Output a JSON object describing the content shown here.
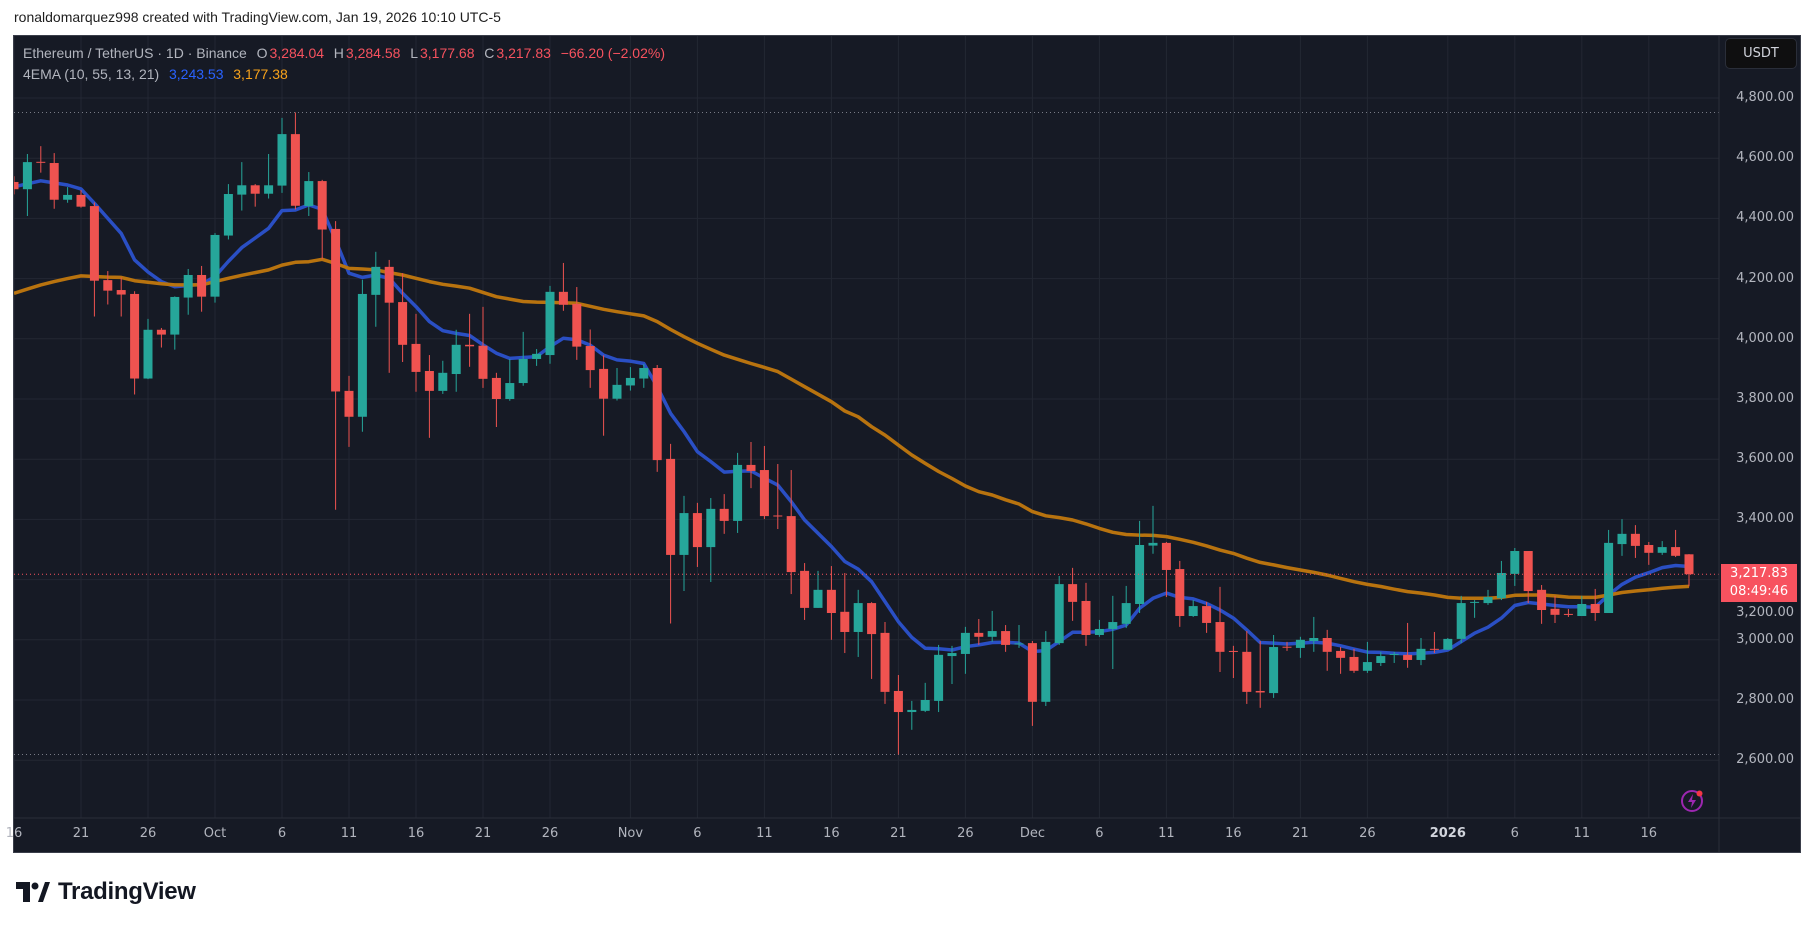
{
  "author_line": "ronaldomarquez998 created with TradingView.com, Jan 19, 2026 10:10 UTC-5",
  "legend": {
    "symbol": "Ethereum / TetherUS · 1D · Binance",
    "open_label": "O",
    "open": "3,284.04",
    "high_label": "H",
    "high": "3,284.58",
    "low_label": "L",
    "low": "3,177.68",
    "close_label": "C",
    "close": "3,217.83",
    "change": "−66.20 (−2.02%)",
    "indicator": "4EMA (10, 55, 13, 21)",
    "ema_fast_value": "3,243.53",
    "ema_slow_value": "3,177.38"
  },
  "currency_button": "USDT",
  "last_price": {
    "price": "3,217.83",
    "countdown": "08:49:46"
  },
  "brand": "TradingView",
  "alert_icon": "lightning-bolt-icon",
  "colors": {
    "background": "#161a25",
    "grid": "#232733",
    "up": "#26a69a",
    "down": "#ef5350",
    "ema_fast": "#2a4fc4",
    "ema_slow": "#b8730f",
    "last_price": "#f7525f"
  },
  "chart_data": {
    "type": "candlestick",
    "title": "Ethereum / TetherUS · 1D · Binance",
    "xlabel": "",
    "ylabel": "USDT",
    "ylim": [
      2460,
      4930
    ],
    "grid": true,
    "price_axis": {
      "ticks": [
        "4,800.00",
        "4,600.00",
        "4,400.00",
        "4,200.00",
        "4,000.00",
        "3,800.00",
        "3,600.00",
        "3,400.00",
        "3,200.00",
        "3,000.00",
        "2,800.00",
        "2,600.00"
      ]
    },
    "time_axis": {
      "ticks": [
        {
          "label": "16",
          "date": "2025-09-16"
        },
        {
          "label": "21",
          "date": "2025-09-21"
        },
        {
          "label": "26",
          "date": "2025-09-26"
        },
        {
          "label": "Oct",
          "date": "2025-10-01"
        },
        {
          "label": "6",
          "date": "2025-10-06"
        },
        {
          "label": "11",
          "date": "2025-10-11"
        },
        {
          "label": "16",
          "date": "2025-10-16"
        },
        {
          "label": "21",
          "date": "2025-10-21"
        },
        {
          "label": "26",
          "date": "2025-10-26"
        },
        {
          "label": "Nov",
          "date": "2025-11-01"
        },
        {
          "label": "6",
          "date": "2025-11-06"
        },
        {
          "label": "11",
          "date": "2025-11-11"
        },
        {
          "label": "16",
          "date": "2025-11-16"
        },
        {
          "label": "21",
          "date": "2025-11-21"
        },
        {
          "label": "26",
          "date": "2025-11-26"
        },
        {
          "label": "Dec",
          "date": "2025-12-01"
        },
        {
          "label": "6",
          "date": "2025-12-06"
        },
        {
          "label": "11",
          "date": "2025-12-11"
        },
        {
          "label": "16",
          "date": "2025-12-16"
        },
        {
          "label": "21",
          "date": "2025-12-21"
        },
        {
          "label": "26",
          "date": "2025-12-26"
        },
        {
          "label": "2026",
          "date": "2026-01-01",
          "bold": true
        },
        {
          "label": "6",
          "date": "2026-01-06"
        },
        {
          "label": "11",
          "date": "2026-01-11"
        },
        {
          "label": "16",
          "date": "2026-01-16"
        }
      ]
    },
    "candles_columns": [
      "date",
      "open",
      "high",
      "low",
      "close"
    ],
    "candles": [
      [
        "2025-09-16",
        4521,
        4540,
        4480,
        4497
      ],
      [
        "2025-09-17",
        4497,
        4614,
        4408,
        4587
      ],
      [
        "2025-09-18",
        4588,
        4640,
        4552,
        4585
      ],
      [
        "2025-09-19",
        4584,
        4617,
        4432,
        4462
      ],
      [
        "2025-09-20",
        4462,
        4504,
        4452,
        4478
      ],
      [
        "2025-09-21",
        4478,
        4494,
        4436,
        4439
      ],
      [
        "2025-09-22",
        4441,
        4453,
        4074,
        4193
      ],
      [
        "2025-09-23",
        4195,
        4225,
        4114,
        4160
      ],
      [
        "2025-09-24",
        4162,
        4204,
        4074,
        4147
      ],
      [
        "2025-09-25",
        4149,
        4158,
        3815,
        3868
      ],
      [
        "2025-09-26",
        3868,
        4066,
        3866,
        4030
      ],
      [
        "2025-09-27",
        4030,
        4036,
        3971,
        4014
      ],
      [
        "2025-09-28",
        4014,
        4141,
        3964,
        4139
      ],
      [
        "2025-09-29",
        4137,
        4232,
        4080,
        4212
      ],
      [
        "2025-09-30",
        4212,
        4242,
        4090,
        4140
      ],
      [
        "2025-10-01",
        4140,
        4351,
        4120,
        4345
      ],
      [
        "2025-10-02",
        4343,
        4514,
        4330,
        4481
      ],
      [
        "2025-10-03",
        4479,
        4587,
        4426,
        4510
      ],
      [
        "2025-10-04",
        4510,
        4514,
        4439,
        4482
      ],
      [
        "2025-10-05",
        4482,
        4614,
        4466,
        4510
      ],
      [
        "2025-10-06",
        4509,
        4734,
        4485,
        4680
      ],
      [
        "2025-10-07",
        4680,
        4752,
        4430,
        4442
      ],
      [
        "2025-10-08",
        4441,
        4554,
        4408,
        4524
      ],
      [
        "2025-10-09",
        4524,
        4528,
        4264,
        4363
      ],
      [
        "2025-10-10",
        4365,
        4391,
        3432,
        3825
      ],
      [
        "2025-10-11",
        3827,
        3877,
        3641,
        3741
      ],
      [
        "2025-10-12",
        3741,
        4196,
        3691,
        4149
      ],
      [
        "2025-10-13",
        4146,
        4289,
        4040,
        4239
      ],
      [
        "2025-10-14",
        4239,
        4262,
        3887,
        4120
      ],
      [
        "2025-10-15",
        4122,
        4218,
        3923,
        3980
      ],
      [
        "2025-10-16",
        3983,
        4083,
        3824,
        3890
      ],
      [
        "2025-10-17",
        3893,
        3946,
        3671,
        3827
      ],
      [
        "2025-10-18",
        3827,
        3927,
        3817,
        3887
      ],
      [
        "2025-10-19",
        3883,
        4030,
        3824,
        3980
      ],
      [
        "2025-10-20",
        3980,
        4083,
        3907,
        3975
      ],
      [
        "2025-10-21",
        3977,
        4106,
        3837,
        3867
      ],
      [
        "2025-10-22",
        3870,
        3887,
        3707,
        3800
      ],
      [
        "2025-10-23",
        3800,
        3933,
        3794,
        3853
      ],
      [
        "2025-10-24",
        3853,
        4023,
        3844,
        3933
      ],
      [
        "2025-10-25",
        3933,
        3966,
        3910,
        3950
      ],
      [
        "2025-10-26",
        3946,
        4176,
        3917,
        4156
      ],
      [
        "2025-10-27",
        4156,
        4252,
        4093,
        4113
      ],
      [
        "2025-10-28",
        4116,
        4172,
        3930,
        3974
      ],
      [
        "2025-10-29",
        3976,
        4031,
        3837,
        3896
      ],
      [
        "2025-10-30",
        3900,
        3945,
        3678,
        3801
      ],
      [
        "2025-10-31",
        3801,
        3903,
        3795,
        3847
      ],
      [
        "2025-11-01",
        3845,
        3906,
        3828,
        3870
      ],
      [
        "2025-11-02",
        3868,
        3916,
        3837,
        3903
      ],
      [
        "2025-11-03",
        3903,
        3913,
        3558,
        3597
      ],
      [
        "2025-11-04",
        3601,
        3651,
        3054,
        3282
      ],
      [
        "2025-11-05",
        3282,
        3478,
        3162,
        3421
      ],
      [
        "2025-11-06",
        3421,
        3455,
        3242,
        3308
      ],
      [
        "2025-11-07",
        3308,
        3471,
        3192,
        3435
      ],
      [
        "2025-11-08",
        3435,
        3484,
        3352,
        3395
      ],
      [
        "2025-11-09",
        3395,
        3621,
        3355,
        3581
      ],
      [
        "2025-11-10",
        3581,
        3657,
        3504,
        3561
      ],
      [
        "2025-11-11",
        3564,
        3644,
        3401,
        3411
      ],
      [
        "2025-11-12",
        3413,
        3584,
        3368,
        3411
      ],
      [
        "2025-11-13",
        3411,
        3564,
        3152,
        3225
      ],
      [
        "2025-11-14",
        3229,
        3255,
        3066,
        3106
      ],
      [
        "2025-11-15",
        3106,
        3229,
        3106,
        3166
      ],
      [
        "2025-11-16",
        3166,
        3245,
        3000,
        3089
      ],
      [
        "2025-11-17",
        3093,
        3222,
        2956,
        3026
      ],
      [
        "2025-11-18",
        3026,
        3166,
        2943,
        3122
      ],
      [
        "2025-11-19",
        3122,
        3125,
        2870,
        3019
      ],
      [
        "2025-11-20",
        3023,
        3059,
        2787,
        2827
      ],
      [
        "2025-11-21",
        2830,
        2883,
        2619,
        2760
      ],
      [
        "2025-11-22",
        2760,
        2797,
        2701,
        2767
      ],
      [
        "2025-11-23",
        2764,
        2857,
        2760,
        2800
      ],
      [
        "2025-11-24",
        2797,
        2983,
        2760,
        2950
      ],
      [
        "2025-11-25",
        2946,
        2980,
        2853,
        2956
      ],
      [
        "2025-11-26",
        2953,
        3043,
        2887,
        3023
      ],
      [
        "2025-11-27",
        3023,
        3069,
        2983,
        3010
      ],
      [
        "2025-11-28",
        3010,
        3096,
        2993,
        3029
      ],
      [
        "2025-11-29",
        3029,
        3049,
        2960,
        2983
      ],
      [
        "2025-11-30",
        2986,
        3049,
        2973,
        2988
      ],
      [
        "2025-12-01",
        2989,
        2996,
        2714,
        2794
      ],
      [
        "2025-12-02",
        2794,
        3029,
        2780,
        2993
      ],
      [
        "2025-12-03",
        2989,
        3212,
        2983,
        3185
      ],
      [
        "2025-12-04",
        3185,
        3239,
        3063,
        3126
      ],
      [
        "2025-12-05",
        3129,
        3189,
        2980,
        3016
      ],
      [
        "2025-12-06",
        3016,
        3066,
        3010,
        3036
      ],
      [
        "2025-12-07",
        3036,
        3146,
        2903,
        3059
      ],
      [
        "2025-12-08",
        3053,
        3179,
        3039,
        3122
      ],
      [
        "2025-12-09",
        3119,
        3395,
        3089,
        3315
      ],
      [
        "2025-12-10",
        3313,
        3445,
        3286,
        3322
      ],
      [
        "2025-12-11",
        3322,
        3325,
        3142,
        3232
      ],
      [
        "2025-12-12",
        3235,
        3262,
        3043,
        3079
      ],
      [
        "2025-12-13",
        3079,
        3132,
        3076,
        3112
      ],
      [
        "2025-12-14",
        3112,
        3126,
        3023,
        3056
      ],
      [
        "2025-12-15",
        3059,
        3176,
        2893,
        2960
      ],
      [
        "2025-12-16",
        2963,
        2980,
        2873,
        2961
      ],
      [
        "2025-12-17",
        2960,
        3029,
        2787,
        2827
      ],
      [
        "2025-12-18",
        2830,
        2996,
        2774,
        2825
      ],
      [
        "2025-12-19",
        2823,
        3016,
        2807,
        2976
      ],
      [
        "2025-12-20",
        2977,
        2993,
        2963,
        2974
      ],
      [
        "2025-12-21",
        2973,
        3010,
        2940,
        3000
      ],
      [
        "2025-12-22",
        2996,
        3076,
        2960,
        3006
      ],
      [
        "2025-12-23",
        3006,
        3033,
        2897,
        2960
      ],
      [
        "2025-12-24",
        2963,
        2976,
        2887,
        2940
      ],
      [
        "2025-12-25",
        2943,
        2970,
        2890,
        2897
      ],
      [
        "2025-12-26",
        2897,
        2993,
        2890,
        2926
      ],
      [
        "2025-12-27",
        2923,
        2960,
        2913,
        2946
      ],
      [
        "2025-12-28",
        2950,
        2960,
        2923,
        2953
      ],
      [
        "2025-12-29",
        2950,
        3056,
        2907,
        2933
      ],
      [
        "2025-12-30",
        2933,
        3006,
        2916,
        2970
      ],
      [
        "2025-12-31",
        2970,
        3026,
        2956,
        2967
      ],
      [
        "2026-01-01",
        2967,
        3006,
        2966,
        3003
      ],
      [
        "2026-01-02",
        3003,
        3146,
        2989,
        3122
      ],
      [
        "2026-01-03",
        3123,
        3132,
        3073,
        3126
      ],
      [
        "2026-01-04",
        3122,
        3166,
        3116,
        3142
      ],
      [
        "2026-01-05",
        3138,
        3262,
        3132,
        3222
      ],
      [
        "2026-01-06",
        3219,
        3305,
        3179,
        3295
      ],
      [
        "2026-01-07",
        3295,
        3295,
        3122,
        3162
      ],
      [
        "2026-01-08",
        3166,
        3182,
        3053,
        3099
      ],
      [
        "2026-01-09",
        3103,
        3146,
        3056,
        3083
      ],
      [
        "2026-01-10",
        3086,
        3102,
        3076,
        3084
      ],
      [
        "2026-01-11",
        3079,
        3146,
        3079,
        3119
      ],
      [
        "2026-01-12",
        3119,
        3169,
        3063,
        3089
      ],
      [
        "2026-01-13",
        3089,
        3365,
        3089,
        3322
      ],
      [
        "2026-01-14",
        3318,
        3401,
        3279,
        3352
      ],
      [
        "2026-01-15",
        3352,
        3381,
        3272,
        3312
      ],
      [
        "2026-01-16",
        3315,
        3325,
        3249,
        3289
      ],
      [
        "2026-01-17",
        3289,
        3328,
        3282,
        3308
      ],
      [
        "2026-01-18",
        3308,
        3365,
        3275,
        3279
      ],
      [
        "2026-01-19",
        3284.04,
        3284.58,
        3177.68,
        3217.83
      ]
    ],
    "series": [
      {
        "values": [
          4505,
          4515,
          4525,
          4518,
          4511,
          4498,
          4450,
          4400,
          4350,
          4262,
          4222,
          4190,
          4173,
          4177,
          4181,
          4207,
          4257,
          4303,
          4335,
          4367,
          4426,
          4428,
          4445,
          4430,
          4328,
          4218,
          4204,
          4212,
          4201,
          4151,
          4107,
          4057,
          4027,
          4018,
          4011,
          3980,
          3952,
          3935,
          3938,
          3941,
          3974,
          4002,
          3997,
          3979,
          3946,
          3930,
          3926,
          3918,
          3841,
          3752,
          3692,
          3625,
          3592,
          3557,
          3560,
          3561,
          3537,
          3514,
          3459,
          3398,
          3354,
          3310,
          3260,
          3235,
          3193,
          3127,
          3060,
          3008,
          2972,
          2970,
          2966,
          2977,
          2983,
          2991,
          2992,
          2989,
          2961,
          2964,
          2994,
          3025,
          3025,
          3027,
          3035,
          3049,
          3105,
          3138,
          3155,
          3141,
          3136,
          3121,
          3099,
          3072,
          3033,
          2991,
          2989,
          2986,
          2989,
          2992,
          2989,
          2980,
          2969,
          2959,
          2958,
          2955,
          2953,
          2955,
          2958,
          2966,
          2994,
          3022,
          3042,
          3072,
          3114,
          3124,
          3119,
          3114,
          3110,
          3110,
          3108,
          3149,
          3184,
          3208,
          3223,
          3240,
          3247,
          3243.53
        ]
      },
      {
        "values": [
          4151,
          4165,
          4179,
          4190,
          4200,
          4209,
          4207,
          4205,
          4204,
          4193,
          4188,
          4183,
          4179,
          4179,
          4179,
          4190,
          4201,
          4211,
          4220,
          4229,
          4245,
          4254,
          4256,
          4264,
          4250,
          4234,
          4232,
          4229,
          4220,
          4212,
          4201,
          4190,
          4181,
          4175,
          4168,
          4154,
          4140,
          4132,
          4124,
          4122,
          4121,
          4120,
          4118,
          4108,
          4098,
          4090,
          4083,
          4076,
          4057,
          4031,
          4007,
          3985,
          3965,
          3946,
          3932,
          3918,
          3905,
          3891,
          3866,
          3841,
          3816,
          3791,
          3760,
          3741,
          3708,
          3680,
          3647,
          3614,
          3586,
          3559,
          3536,
          3511,
          3492,
          3481,
          3465,
          3451,
          3426,
          3412,
          3406,
          3398,
          3385,
          3370,
          3357,
          3350,
          3348,
          3347,
          3343,
          3334,
          3324,
          3312,
          3298,
          3287,
          3271,
          3257,
          3249,
          3240,
          3232,
          3224,
          3215,
          3204,
          3193,
          3184,
          3177,
          3168,
          3160,
          3155,
          3149,
          3141,
          3138,
          3138,
          3138,
          3141,
          3148,
          3149,
          3149,
          3146,
          3142,
          3141,
          3141,
          3149,
          3157,
          3162,
          3166,
          3171,
          3175,
          3177.38
        ]
      }
    ]
  }
}
